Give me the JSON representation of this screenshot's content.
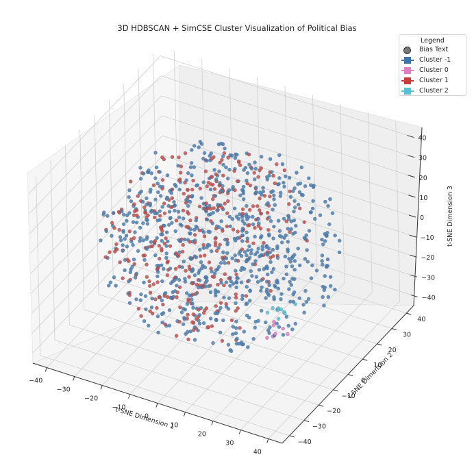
{
  "chart_data": {
    "type": "scatter",
    "projection": "3d",
    "title": "3D HDBSCAN + SimCSE Cluster Visualization of Political Bias",
    "xlabel": "t-SNE Dimension 1",
    "ylabel": "t-SNE Dimension 2",
    "zlabel": "t-SNE Dimension 3",
    "xlim": [
      -45,
      45
    ],
    "ylim": [
      -45,
      45
    ],
    "zlim": [
      -45,
      45
    ],
    "xticks": [
      "−40",
      "−30",
      "−20",
      "−10",
      "0",
      "10",
      "20",
      "30",
      "40"
    ],
    "yticks": [
      "−40",
      "−30",
      "−20",
      "−10",
      "0",
      "10",
      "20",
      "30",
      "40"
    ],
    "zticks": [
      "−40",
      "−30",
      "−20",
      "−10",
      "0",
      "10",
      "20",
      "30",
      "40"
    ],
    "grid": true,
    "legend": {
      "title": "Legend",
      "position": "upper right",
      "entries": [
        {
          "label": "Bias Text",
          "marker": "circle",
          "color": "#777777"
        },
        {
          "label": "Cluster -1",
          "marker": "square",
          "color": "#3a75b0"
        },
        {
          "label": "Cluster 0",
          "marker": "square",
          "color": "#e17ec6"
        },
        {
          "label": "Cluster 1",
          "marker": "square",
          "color": "#c83c37"
        },
        {
          "label": "Cluster 2",
          "marker": "square",
          "color": "#57c0d2"
        }
      ]
    },
    "series": [
      {
        "name": "Cluster -1",
        "color": "#4c7fb0",
        "approx_count": 720,
        "distribution": "spread throughout sphere of radius ~40 in t-SNE space"
      },
      {
        "name": "Cluster 0",
        "color": "#e17ec6",
        "approx_count": 7,
        "distribution": "small group near x≈20, y≈-10, z≈-25"
      },
      {
        "name": "Cluster 1",
        "color": "#c0504d",
        "approx_count": 330,
        "distribution": "concentrated on the left/front half (negative x)"
      },
      {
        "name": "Cluster 2",
        "color": "#57c0d2",
        "approx_count": 9,
        "distribution": "small group near x≈20, y≈-5, z≈-20"
      }
    ]
  }
}
